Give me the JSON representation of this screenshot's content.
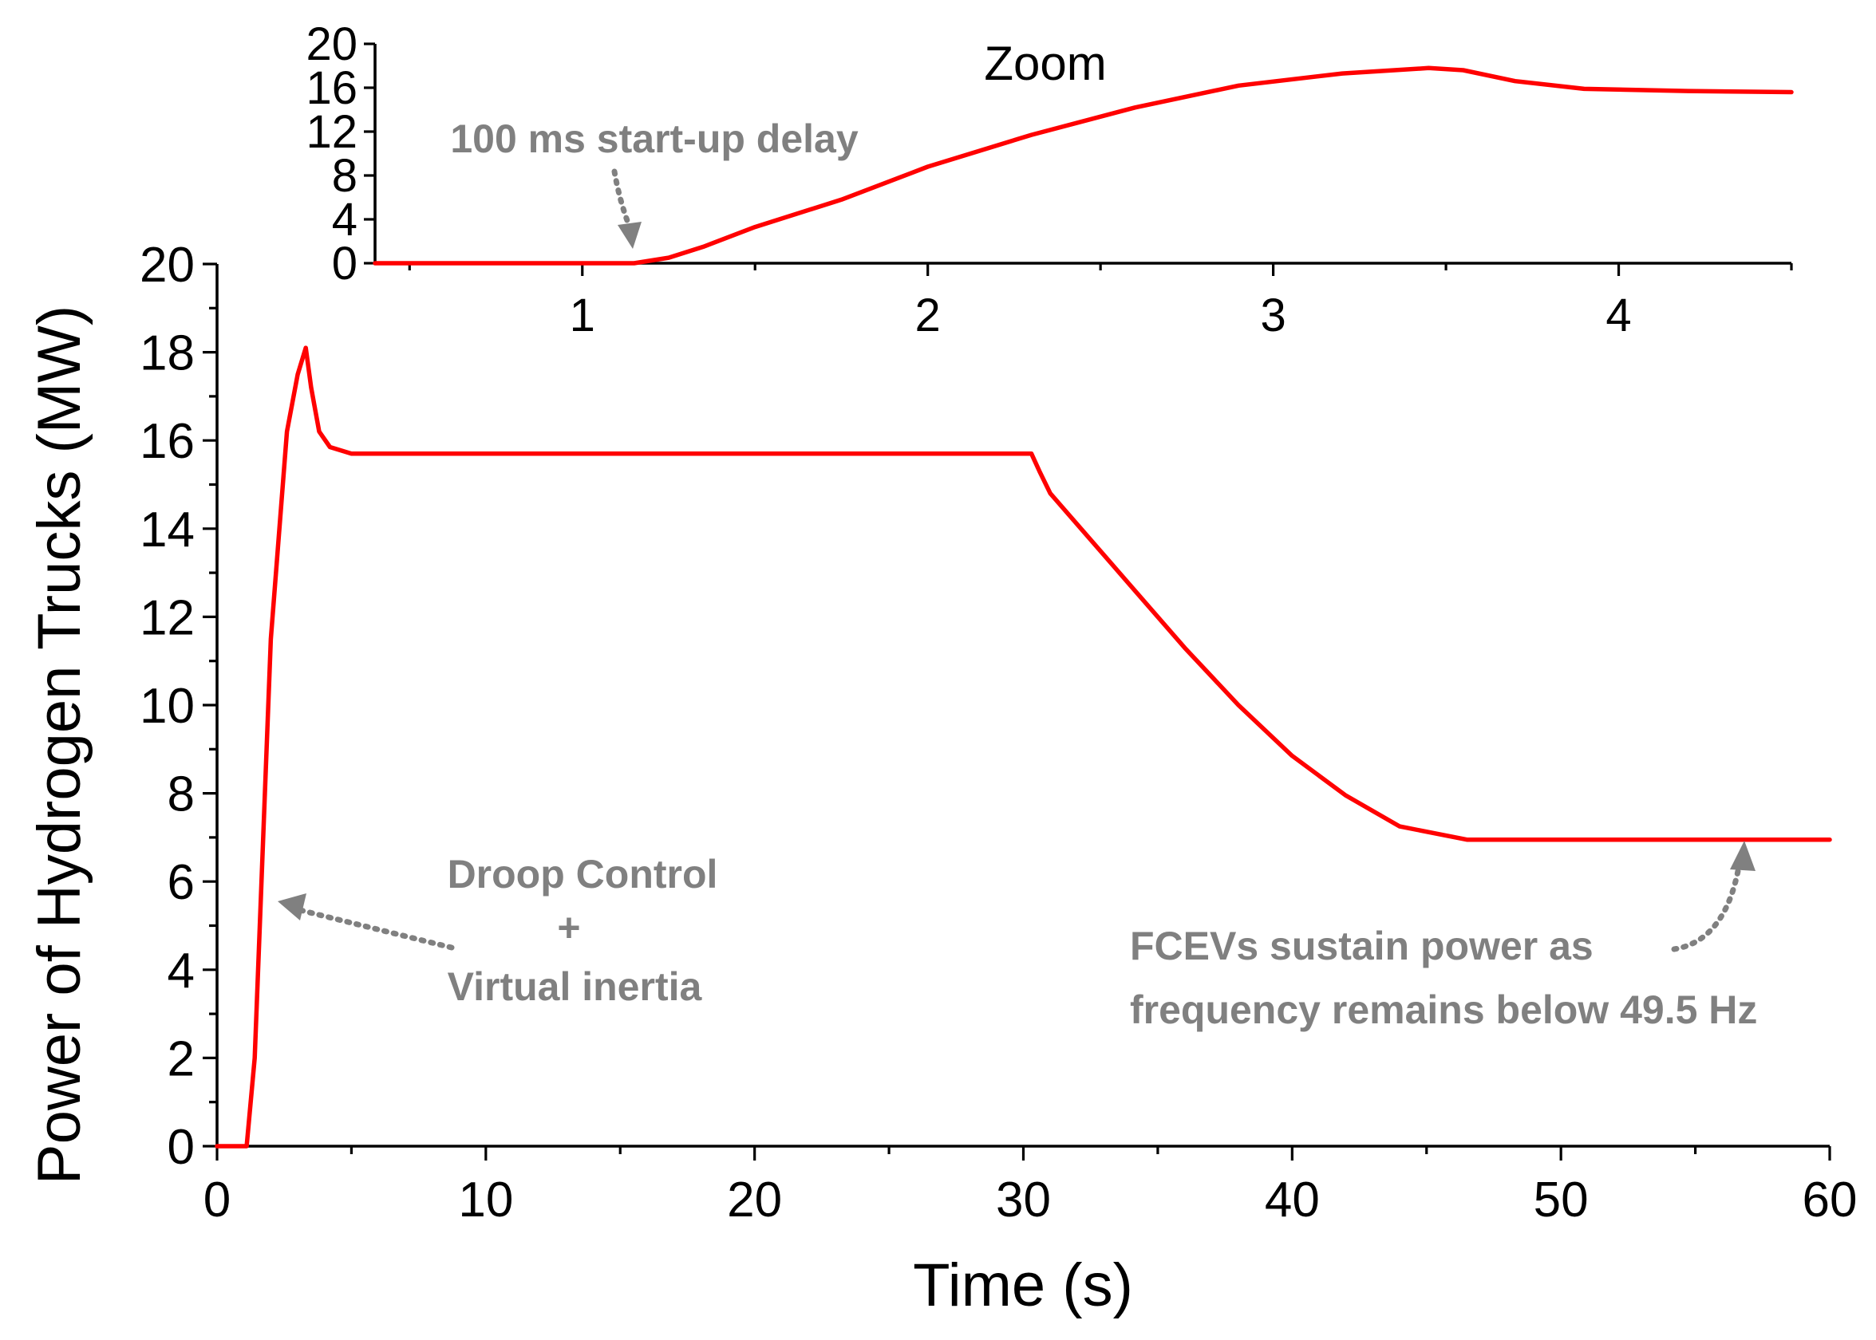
{
  "chart_data": [
    {
      "id": "main",
      "type": "line",
      "title": "",
      "xlabel": "Time (s)",
      "ylabel": "Power of Hydrogen Trucks (MW)",
      "xlim": [
        0,
        60
      ],
      "ylim": [
        0,
        20
      ],
      "xticks": [
        "0",
        "10",
        "20",
        "30",
        "40",
        "50",
        "60"
      ],
      "yticks": [
        "0",
        "2",
        "4",
        "6",
        "8",
        "10",
        "12",
        "14",
        "16",
        "18",
        "20"
      ],
      "grid": false,
      "series": [
        {
          "name": "Power of Hydrogen Trucks",
          "color": "#ff0000",
          "x": [
            0,
            1.1,
            1.4,
            2.0,
            2.6,
            3.0,
            3.3,
            3.5,
            3.8,
            4.2,
            5.0,
            6.0,
            10.0,
            20.0,
            30.3,
            30.6,
            31.0,
            32.0,
            34.0,
            36.0,
            38.0,
            40.0,
            42.0,
            44.0,
            46.5,
            50.0,
            60.0
          ],
          "y": [
            0,
            0,
            2.0,
            11.5,
            16.2,
            17.5,
            18.1,
            17.2,
            16.2,
            15.85,
            15.7,
            15.7,
            15.7,
            15.7,
            15.7,
            15.3,
            14.8,
            14.1,
            12.7,
            11.3,
            10.0,
            8.85,
            7.95,
            7.25,
            6.95,
            6.95,
            6.95
          ]
        }
      ],
      "annotations": [
        {
          "lines": [
            "Droop Control",
            "+",
            "Virtual inertia"
          ]
        },
        {
          "lines": [
            "FCEVs sustain power as",
            "frequency remains below 49.5 Hz"
          ]
        }
      ]
    },
    {
      "id": "zoom",
      "type": "line",
      "title": "Zoom",
      "xlabel": "",
      "ylabel": "",
      "xlim": [
        0.4,
        4.5
      ],
      "ylim": [
        0,
        20
      ],
      "xticks": [
        "1",
        "2",
        "3",
        "4"
      ],
      "yticks": [
        "0",
        "4",
        "8",
        "12",
        "16",
        "20"
      ],
      "grid": false,
      "series": [
        {
          "name": "Power of Hydrogen Trucks (zoom)",
          "color": "#ff0000",
          "x": [
            0.4,
            1.0,
            1.15,
            1.25,
            1.35,
            1.5,
            1.75,
            2.0,
            2.3,
            2.6,
            2.9,
            3.2,
            3.45,
            3.55,
            3.7,
            3.9,
            4.2,
            4.5
          ],
          "y": [
            0,
            0,
            0,
            0.5,
            1.5,
            3.3,
            5.8,
            8.8,
            11.7,
            14.2,
            16.2,
            17.3,
            17.8,
            17.6,
            16.6,
            15.9,
            15.7,
            15.6
          ]
        }
      ],
      "annotations": [
        {
          "lines": [
            "100 ms start-up delay"
          ]
        }
      ]
    }
  ]
}
